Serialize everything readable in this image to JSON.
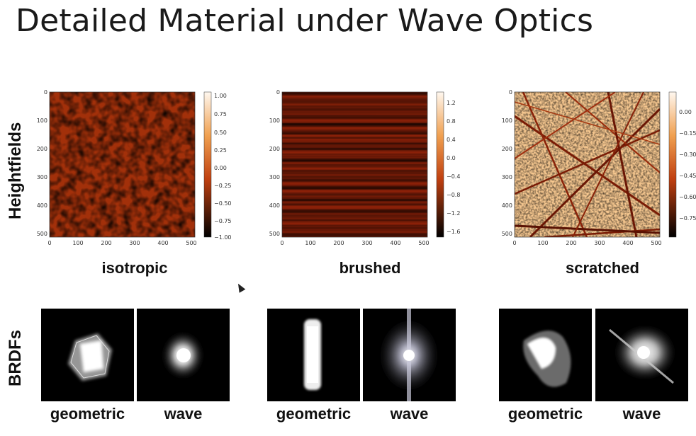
{
  "slide": {
    "title": "Detailed Material under Wave Optics",
    "row_labels": {
      "top": "Heightfields",
      "bottom": "BRDFs"
    },
    "materials": [
      {
        "name": "isotropic",
        "x_ticks": [
          "0",
          "100",
          "200",
          "300",
          "400",
          "500"
        ],
        "y_ticks": [
          "0",
          "100",
          "200",
          "300",
          "400",
          "500"
        ],
        "colorbar_ticks": [
          "1.00",
          "0.75",
          "0.50",
          "0.25",
          "0.00",
          "−0.25",
          "−0.50",
          "−0.75",
          "−1.00"
        ]
      },
      {
        "name": "brushed",
        "x_ticks": [
          "0",
          "100",
          "200",
          "300",
          "400",
          "500"
        ],
        "y_ticks": [
          "0",
          "100",
          "200",
          "300",
          "400",
          "500"
        ],
        "colorbar_ticks": [
          "1.2",
          "0.8",
          "0.4",
          "0.0",
          "−0.4",
          "−0.8",
          "−1.2",
          "−1.6"
        ]
      },
      {
        "name": "scratched",
        "x_ticks": [
          "0",
          "100",
          "200",
          "300",
          "400",
          "500"
        ],
        "y_ticks": [
          "0",
          "100",
          "200",
          "300",
          "400",
          "500"
        ],
        "colorbar_ticks": [
          "0.00",
          "−0.15",
          "−0.30",
          "−0.45",
          "−0.60",
          "−0.75"
        ]
      }
    ],
    "brdf_labels": {
      "geometric": "geometric",
      "wave": "wave"
    }
  }
}
